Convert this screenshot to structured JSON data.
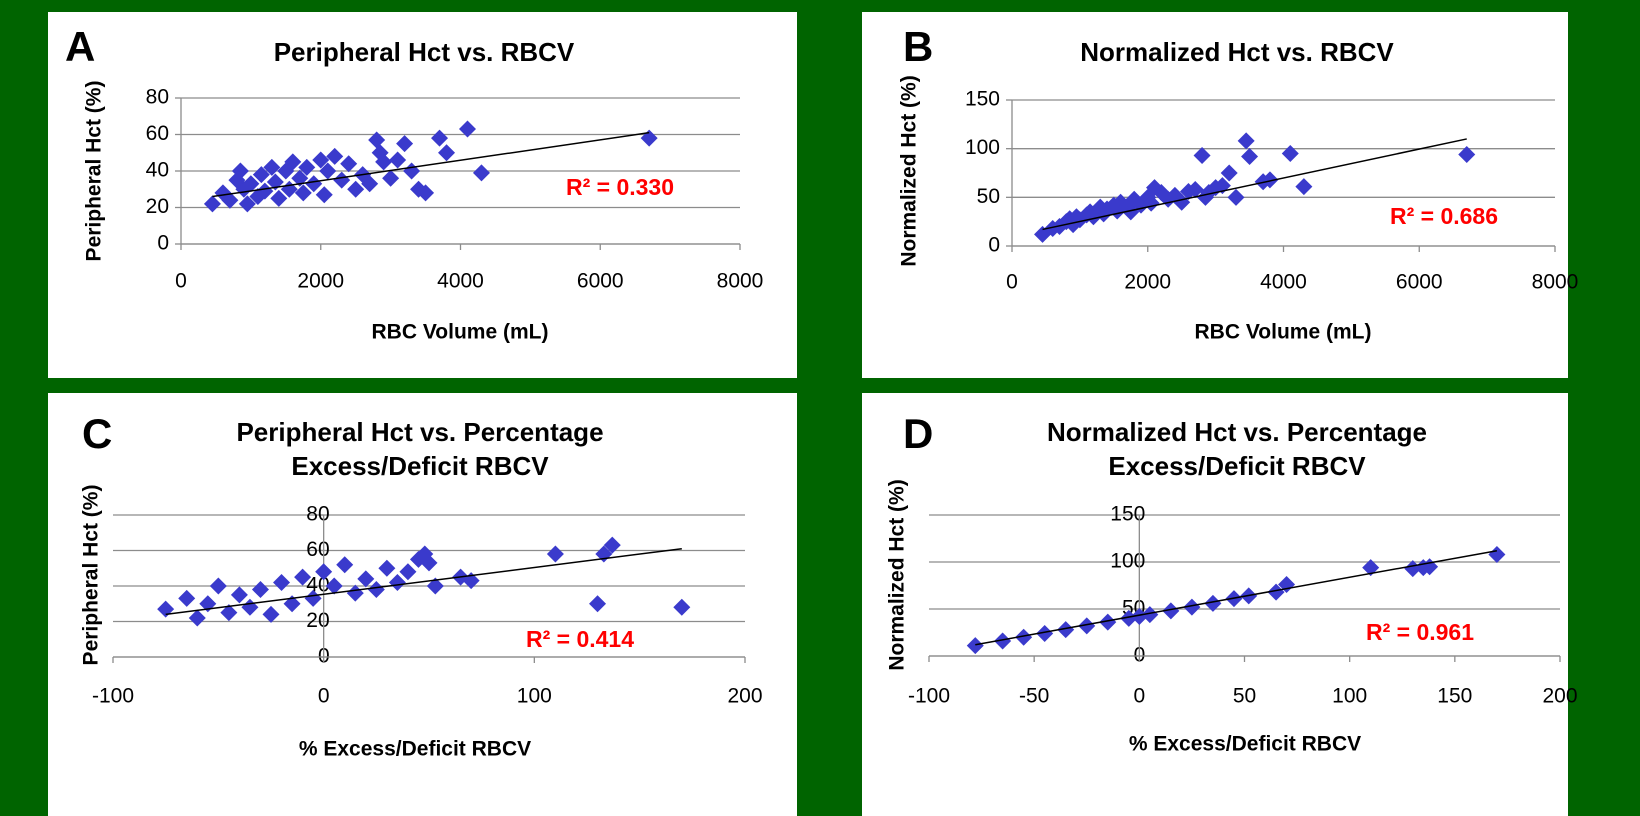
{
  "chart_data": [
    {
      "type": "scatter",
      "panel_label": "A",
      "title": "Peripheral Hct vs. RBCV",
      "x_label": "RBC Volume (mL)",
      "y_label": "Peripheral Hct (%)",
      "annotation": "R² = 0.330",
      "color": "#3a3acc",
      "grid": true,
      "xlim": [
        0,
        8000
      ],
      "ylim": [
        0,
        80
      ],
      "xticks": [
        0,
        2000,
        4000,
        6000,
        8000
      ],
      "yticks": [
        0,
        20,
        40,
        60,
        80
      ],
      "x": [
        450,
        600,
        700,
        800,
        850,
        900,
        950,
        1000,
        1100,
        1150,
        1200,
        1300,
        1350,
        1400,
        1500,
        1550,
        1600,
        1700,
        1750,
        1800,
        1900,
        2000,
        2050,
        2100,
        2200,
        2300,
        2400,
        2500,
        2600,
        2700,
        2800,
        2850,
        2900,
        3000,
        3100,
        3200,
        3300,
        3400,
        3500,
        3700,
        3800,
        4100,
        4300,
        6700
      ],
      "y": [
        22,
        28,
        24,
        35,
        40,
        30,
        22,
        33,
        26,
        38,
        29,
        42,
        34,
        25,
        40,
        30,
        45,
        36,
        28,
        42,
        33,
        46,
        27,
        40,
        48,
        35,
        44,
        30,
        38,
        33,
        57,
        50,
        45,
        36,
        46,
        55,
        40,
        30,
        28,
        58,
        50,
        63,
        39,
        58
      ],
      "trendline": {
        "x": [
          450,
          6700
        ],
        "y": [
          26,
          61
        ]
      }
    },
    {
      "type": "scatter",
      "panel_label": "B",
      "title": "Normalized Hct vs. RBCV",
      "x_label": "RBC Volume (mL)",
      "y_label": "Normalized Hct (%)",
      "annotation": "R² = 0.686",
      "color": "#3a3acc",
      "grid": true,
      "xlim": [
        0,
        8000
      ],
      "ylim": [
        0,
        150
      ],
      "xticks": [
        0,
        2000,
        4000,
        6000,
        8000
      ],
      "yticks": [
        0,
        50,
        100,
        150
      ],
      "x": [
        450,
        600,
        700,
        800,
        850,
        900,
        950,
        1000,
        1100,
        1150,
        1200,
        1300,
        1350,
        1400,
        1500,
        1550,
        1600,
        1700,
        1750,
        1800,
        1900,
        2000,
        2050,
        2100,
        2200,
        2300,
        2400,
        2500,
        2600,
        2700,
        2800,
        2850,
        2900,
        3000,
        3100,
        3200,
        3300,
        3450,
        3500,
        3700,
        3800,
        4100,
        4300,
        6700
      ],
      "y": [
        12,
        18,
        20,
        25,
        28,
        22,
        30,
        27,
        32,
        35,
        30,
        40,
        33,
        38,
        42,
        36,
        45,
        40,
        35,
        48,
        42,
        50,
        44,
        60,
        55,
        48,
        52,
        45,
        56,
        58,
        93,
        50,
        55,
        60,
        62,
        75,
        50,
        108,
        92,
        66,
        68,
        95,
        61,
        94
      ],
      "trendline": {
        "x": [
          450,
          6700
        ],
        "y": [
          17,
          110
        ]
      }
    },
    {
      "type": "scatter",
      "panel_label": "C",
      "title": "Peripheral Hct vs. Percentage Excess/Deficit RBCV",
      "x_label": "% Excess/Deficit RBCV",
      "y_label": "Peripheral Hct (%)",
      "annotation": "R² = 0.414",
      "color": "#3a3acc",
      "grid": true,
      "xlim": [
        -100,
        200
      ],
      "ylim": [
        0,
        80
      ],
      "xticks": [
        -100,
        0,
        100,
        200
      ],
      "yticks": [
        0,
        20,
        40,
        60,
        80
      ],
      "x": [
        -75,
        -65,
        -60,
        -55,
        -50,
        -45,
        -40,
        -35,
        -30,
        -25,
        -20,
        -15,
        -10,
        -5,
        0,
        5,
        10,
        15,
        20,
        25,
        30,
        35,
        40,
        45,
        48,
        50,
        53,
        65,
        70,
        110,
        130,
        133,
        137,
        170
      ],
      "y": [
        27,
        33,
        22,
        30,
        40,
        25,
        35,
        28,
        38,
        24,
        42,
        30,
        45,
        33,
        48,
        40,
        52,
        36,
        44,
        38,
        50,
        42,
        48,
        55,
        58,
        53,
        40,
        45,
        43,
        58,
        30,
        58,
        63,
        28
      ],
      "trendline": {
        "x": [
          -75,
          170
        ],
        "y": [
          24,
          61
        ]
      }
    },
    {
      "type": "scatter",
      "panel_label": "D",
      "title": "Normalized Hct vs. Percentage Excess/Deficit RBCV",
      "x_label": "% Excess/Deficit RBCV",
      "y_label": "Normalized Hct (%)",
      "annotation": "R² = 0.961",
      "color": "#3a3acc",
      "grid": true,
      "xlim": [
        -100,
        200
      ],
      "ylim": [
        0,
        150
      ],
      "xticks": [
        -100,
        -50,
        0,
        50,
        100,
        150,
        200
      ],
      "yticks": [
        0,
        50,
        100,
        150
      ],
      "x": [
        -78,
        -65,
        -55,
        -45,
        -35,
        -25,
        -15,
        -5,
        0,
        5,
        15,
        25,
        35,
        45,
        52,
        65,
        70,
        110,
        130,
        135,
        138,
        170
      ],
      "y": [
        11,
        16,
        20,
        24,
        28,
        32,
        36,
        40,
        42,
        44,
        48,
        52,
        56,
        61,
        64,
        68,
        76,
        94,
        93,
        94,
        95,
        108
      ],
      "trendline": {
        "x": [
          -78,
          170
        ],
        "y": [
          12,
          112
        ]
      }
    }
  ]
}
